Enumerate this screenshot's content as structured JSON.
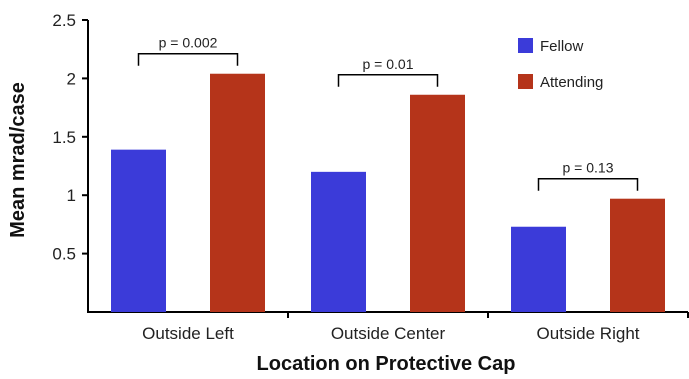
{
  "chart_data": {
    "type": "bar",
    "title": "",
    "xlabel": "Location on Protective Cap",
    "ylabel": "Mean mrad/case",
    "ylim": [
      0,
      2.5
    ],
    "yticks": [
      0.5,
      1,
      1.5,
      2,
      2.5
    ],
    "ytick_labels": [
      "0.5",
      "1",
      "1.5",
      "2",
      "2.5"
    ],
    "categories": [
      "Outside Left",
      "Outside Center",
      "Outside Right"
    ],
    "series": [
      {
        "name": "Fellow",
        "color": "#3b3bd9",
        "values": [
          1.39,
          1.2,
          0.73
        ]
      },
      {
        "name": "Attending",
        "color": "#b5341a",
        "values": [
          2.04,
          1.86,
          0.97
        ]
      }
    ],
    "legend": {
      "position": "top-right"
    },
    "grid": false,
    "annotations": [
      {
        "category": "Outside Left",
        "text": "p = 0.002"
      },
      {
        "category": "Outside Center",
        "text": "p = 0.01"
      },
      {
        "category": "Outside Right",
        "text": "p = 0.13"
      }
    ]
  }
}
